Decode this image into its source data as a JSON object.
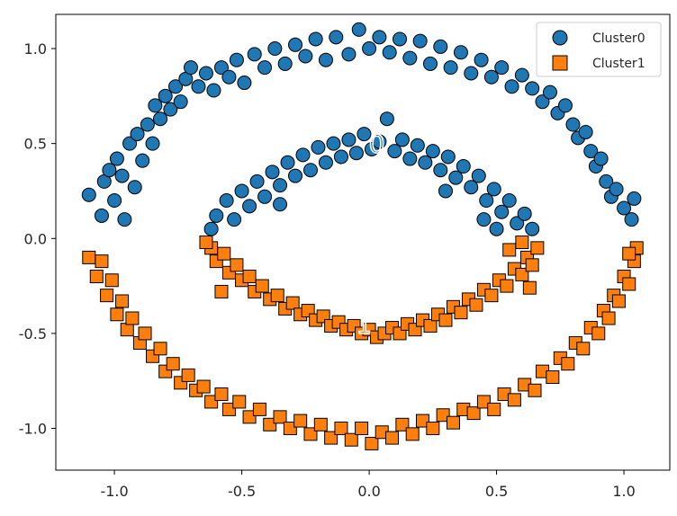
{
  "chart_data": {
    "type": "scatter",
    "title": "",
    "xlabel": "",
    "ylabel": "",
    "xlim": [
      -1.23,
      1.18
    ],
    "ylim": [
      -1.22,
      1.18
    ],
    "xticks": [
      -1.0,
      -0.5,
      0.0,
      0.5,
      1.0
    ],
    "xtick_labels": [
      "-1.0",
      "-0.5",
      "0.0",
      "0.5",
      "1.0"
    ],
    "yticks": [
      1.0,
      0.5,
      0.0,
      -0.5,
      -1.0
    ],
    "ytick_labels": [
      "1.0",
      "0.5",
      "0.0",
      "-0.5",
      "-1.0"
    ],
    "grid": false,
    "legend_position": "top-right",
    "series": [
      {
        "name": "Cluster0",
        "marker": "circle",
        "color": "#1f77b4",
        "points": [
          [
            -1.1,
            0.23
          ],
          [
            -1.05,
            0.12
          ],
          [
            -1.04,
            0.3
          ],
          [
            -1.02,
            0.36
          ],
          [
            -1.0,
            0.2
          ],
          [
            -0.99,
            0.42
          ],
          [
            -0.97,
            0.33
          ],
          [
            -0.96,
            0.1
          ],
          [
            -0.94,
            0.5
          ],
          [
            -0.92,
            0.27
          ],
          [
            -0.91,
            0.55
          ],
          [
            -0.89,
            0.41
          ],
          [
            -0.87,
            0.6
          ],
          [
            -0.85,
            0.5
          ],
          [
            -0.84,
            0.7
          ],
          [
            -0.82,
            0.63
          ],
          [
            -0.8,
            0.75
          ],
          [
            -0.78,
            0.68
          ],
          [
            -0.76,
            0.8
          ],
          [
            -0.74,
            0.72
          ],
          [
            -0.72,
            0.84
          ],
          [
            -0.7,
            0.9
          ],
          [
            -0.67,
            0.8
          ],
          [
            -0.64,
            0.87
          ],
          [
            -0.61,
            0.78
          ],
          [
            -0.58,
            0.9
          ],
          [
            -0.55,
            0.85
          ],
          [
            -0.52,
            0.94
          ],
          [
            -0.49,
            0.82
          ],
          [
            -0.45,
            0.97
          ],
          [
            -0.41,
            0.9
          ],
          [
            -0.37,
            1.0
          ],
          [
            -0.33,
            0.92
          ],
          [
            -0.29,
            1.02
          ],
          [
            -0.25,
            0.96
          ],
          [
            -0.21,
            1.05
          ],
          [
            -0.17,
            0.94
          ],
          [
            -0.13,
            1.06
          ],
          [
            -0.08,
            0.97
          ],
          [
            -0.04,
            1.1
          ],
          [
            0.0,
            1.0
          ],
          [
            0.04,
            1.06
          ],
          [
            0.08,
            0.98
          ],
          [
            0.12,
            1.05
          ],
          [
            0.16,
            0.95
          ],
          [
            0.2,
            1.04
          ],
          [
            0.24,
            0.92
          ],
          [
            0.28,
            1.01
          ],
          [
            0.32,
            0.9
          ],
          [
            0.36,
            0.98
          ],
          [
            0.4,
            0.87
          ],
          [
            0.44,
            0.94
          ],
          [
            0.48,
            0.85
          ],
          [
            0.52,
            0.9
          ],
          [
            0.56,
            0.8
          ],
          [
            0.6,
            0.86
          ],
          [
            0.64,
            0.79
          ],
          [
            0.68,
            0.72
          ],
          [
            0.71,
            0.77
          ],
          [
            0.74,
            0.66
          ],
          [
            0.77,
            0.7
          ],
          [
            0.8,
            0.6
          ],
          [
            0.82,
            0.53
          ],
          [
            0.85,
            0.56
          ],
          [
            0.87,
            0.46
          ],
          [
            0.89,
            0.38
          ],
          [
            0.91,
            0.42
          ],
          [
            0.93,
            0.3
          ],
          [
            0.95,
            0.22
          ],
          [
            0.97,
            0.26
          ],
          [
            1.0,
            0.16
          ],
          [
            1.03,
            0.1
          ],
          [
            1.04,
            0.21
          ],
          [
            -0.6,
            0.12
          ],
          [
            -0.56,
            0.2
          ],
          [
            -0.53,
            0.1
          ],
          [
            -0.5,
            0.25
          ],
          [
            -0.47,
            0.17
          ],
          [
            -0.44,
            0.3
          ],
          [
            -0.41,
            0.22
          ],
          [
            -0.38,
            0.35
          ],
          [
            -0.35,
            0.28
          ],
          [
            -0.32,
            0.4
          ],
          [
            -0.29,
            0.33
          ],
          [
            -0.26,
            0.44
          ],
          [
            -0.23,
            0.36
          ],
          [
            -0.2,
            0.48
          ],
          [
            -0.17,
            0.4
          ],
          [
            -0.14,
            0.5
          ],
          [
            -0.11,
            0.43
          ],
          [
            -0.08,
            0.52
          ],
          [
            -0.05,
            0.45
          ],
          [
            -0.02,
            0.55
          ],
          [
            0.01,
            0.47
          ],
          [
            0.04,
            0.51
          ],
          [
            0.07,
            0.63
          ],
          [
            0.1,
            0.46
          ],
          [
            0.13,
            0.52
          ],
          [
            0.16,
            0.42
          ],
          [
            0.19,
            0.49
          ],
          [
            0.22,
            0.4
          ],
          [
            0.25,
            0.46
          ],
          [
            0.28,
            0.36
          ],
          [
            0.31,
            0.43
          ],
          [
            0.34,
            0.32
          ],
          [
            0.37,
            0.38
          ],
          [
            0.4,
            0.27
          ],
          [
            0.43,
            0.33
          ],
          [
            0.46,
            0.2
          ],
          [
            0.49,
            0.26
          ],
          [
            0.52,
            0.14
          ],
          [
            0.55,
            0.2
          ],
          [
            0.58,
            0.08
          ],
          [
            0.61,
            0.13
          ],
          [
            0.64,
            0.05
          ],
          [
            0.5,
            0.05
          ],
          [
            0.45,
            0.1
          ],
          [
            -0.62,
            0.05
          ],
          [
            -0.35,
            0.18
          ],
          [
            0.3,
            0.25
          ]
        ]
      },
      {
        "name": "Cluster1",
        "marker": "square",
        "color": "#ff7f0e",
        "points": [
          [
            -1.1,
            -0.1
          ],
          [
            -1.07,
            -0.2
          ],
          [
            -1.05,
            -0.12
          ],
          [
            -1.03,
            -0.3
          ],
          [
            -1.01,
            -0.22
          ],
          [
            -0.99,
            -0.4
          ],
          [
            -0.97,
            -0.33
          ],
          [
            -0.95,
            -0.48
          ],
          [
            -0.93,
            -0.42
          ],
          [
            -0.9,
            -0.55
          ],
          [
            -0.88,
            -0.5
          ],
          [
            -0.85,
            -0.62
          ],
          [
            -0.82,
            -0.58
          ],
          [
            -0.8,
            -0.7
          ],
          [
            -0.77,
            -0.66
          ],
          [
            -0.74,
            -0.76
          ],
          [
            -0.71,
            -0.72
          ],
          [
            -0.68,
            -0.8
          ],
          [
            -0.65,
            -0.78
          ],
          [
            -0.62,
            -0.86
          ],
          [
            -0.58,
            -0.82
          ],
          [
            -0.55,
            -0.9
          ],
          [
            -0.51,
            -0.86
          ],
          [
            -0.47,
            -0.94
          ],
          [
            -0.43,
            -0.9
          ],
          [
            -0.39,
            -0.98
          ],
          [
            -0.35,
            -0.94
          ],
          [
            -0.31,
            -1.0
          ],
          [
            -0.27,
            -0.96
          ],
          [
            -0.23,
            -1.03
          ],
          [
            -0.19,
            -0.98
          ],
          [
            -0.15,
            -1.05
          ],
          [
            -0.11,
            -1.0
          ],
          [
            -0.07,
            -1.06
          ],
          [
            -0.03,
            -1.0
          ],
          [
            0.01,
            -1.08
          ],
          [
            0.05,
            -1.02
          ],
          [
            0.09,
            -1.05
          ],
          [
            0.13,
            -0.98
          ],
          [
            0.17,
            -1.03
          ],
          [
            0.21,
            -0.96
          ],
          [
            0.25,
            -1.0
          ],
          [
            0.29,
            -0.93
          ],
          [
            0.33,
            -0.97
          ],
          [
            0.37,
            -0.9
          ],
          [
            0.41,
            -0.92
          ],
          [
            0.45,
            -0.86
          ],
          [
            0.49,
            -0.9
          ],
          [
            0.53,
            -0.82
          ],
          [
            0.57,
            -0.85
          ],
          [
            0.61,
            -0.77
          ],
          [
            0.65,
            -0.8
          ],
          [
            0.68,
            -0.7
          ],
          [
            0.72,
            -0.73
          ],
          [
            0.75,
            -0.63
          ],
          [
            0.78,
            -0.66
          ],
          [
            0.81,
            -0.55
          ],
          [
            0.84,
            -0.58
          ],
          [
            0.87,
            -0.47
          ],
          [
            0.9,
            -0.5
          ],
          [
            0.92,
            -0.38
          ],
          [
            0.94,
            -0.42
          ],
          [
            0.96,
            -0.3
          ],
          [
            0.98,
            -0.33
          ],
          [
            1.0,
            -0.2
          ],
          [
            1.02,
            -0.24
          ],
          [
            1.04,
            -0.12
          ],
          [
            1.05,
            -0.05
          ],
          [
            1.02,
            -0.08
          ],
          [
            -0.62,
            -0.05
          ],
          [
            -0.6,
            -0.12
          ],
          [
            -0.57,
            -0.08
          ],
          [
            -0.55,
            -0.18
          ],
          [
            -0.52,
            -0.14
          ],
          [
            -0.5,
            -0.22
          ],
          [
            -0.47,
            -0.2
          ],
          [
            -0.45,
            -0.28
          ],
          [
            -0.42,
            -0.25
          ],
          [
            -0.39,
            -0.32
          ],
          [
            -0.36,
            -0.3
          ],
          [
            -0.33,
            -0.37
          ],
          [
            -0.3,
            -0.34
          ],
          [
            -0.27,
            -0.4
          ],
          [
            -0.24,
            -0.38
          ],
          [
            -0.21,
            -0.43
          ],
          [
            -0.18,
            -0.41
          ],
          [
            -0.15,
            -0.46
          ],
          [
            -0.12,
            -0.44
          ],
          [
            -0.09,
            -0.48
          ],
          [
            -0.06,
            -0.46
          ],
          [
            -0.03,
            -0.5
          ],
          [
            0.0,
            -0.48
          ],
          [
            0.03,
            -0.52
          ],
          [
            0.06,
            -0.5
          ],
          [
            0.09,
            -0.47
          ],
          [
            0.12,
            -0.5
          ],
          [
            0.15,
            -0.45
          ],
          [
            0.18,
            -0.48
          ],
          [
            0.21,
            -0.43
          ],
          [
            0.24,
            -0.46
          ],
          [
            0.27,
            -0.4
          ],
          [
            0.3,
            -0.43
          ],
          [
            0.33,
            -0.36
          ],
          [
            0.36,
            -0.39
          ],
          [
            0.39,
            -0.32
          ],
          [
            0.42,
            -0.35
          ],
          [
            0.45,
            -0.27
          ],
          [
            0.48,
            -0.3
          ],
          [
            0.51,
            -0.22
          ],
          [
            0.54,
            -0.25
          ],
          [
            0.57,
            -0.16
          ],
          [
            0.6,
            -0.19
          ],
          [
            0.62,
            -0.1
          ],
          [
            0.64,
            -0.14
          ],
          [
            0.66,
            -0.05
          ],
          [
            0.6,
            -0.02
          ],
          [
            -0.64,
            -0.02
          ],
          [
            -0.58,
            -0.28
          ],
          [
            0.63,
            -0.26
          ],
          [
            0.55,
            -0.06
          ]
        ]
      }
    ],
    "annotations": [
      {
        "text": "0",
        "x": 0.03,
        "y": 0.5
      },
      {
        "text": "1",
        "x": -0.02,
        "y": -0.45
      }
    ]
  }
}
